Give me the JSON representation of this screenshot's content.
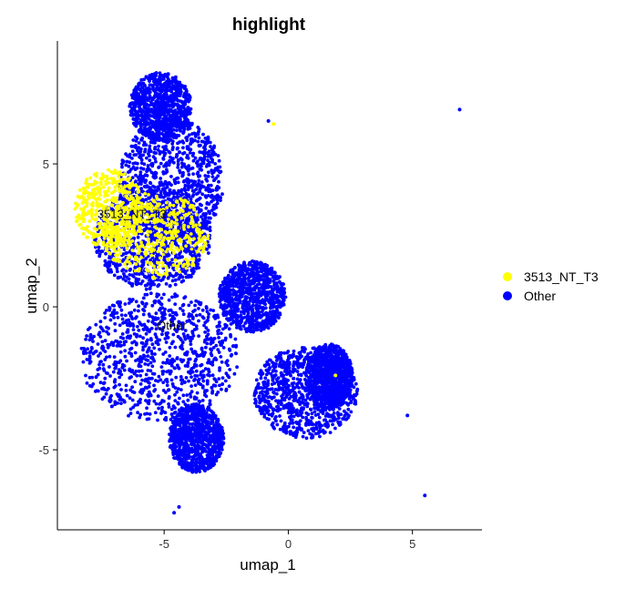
{
  "chart_data": {
    "type": "scatter",
    "title": "highlight",
    "xlabel": "umap_1",
    "ylabel": "umap_2",
    "xlim": [
      -9.3,
      7.8
    ],
    "ylim": [
      -7.8,
      9.3
    ],
    "x_ticks": [
      -5,
      0,
      5
    ],
    "y_ticks": [
      -5,
      0,
      5
    ],
    "grid": false,
    "legend_position": "right",
    "colors": {
      "highlight": "#FFFF00",
      "other": "#0000FF"
    },
    "series": [
      {
        "name": "3513_NT_T3",
        "color": "#FFFF00",
        "regions": [
          {
            "x_range": [
              -8.6,
              -5.8
            ],
            "y_range": [
              2.0,
              4.8
            ]
          },
          {
            "x_range": [
              -7.5,
              -3.2
            ],
            "y_range": [
              1.0,
              4.0
            ]
          }
        ],
        "outliers": [
          [
            -0.6,
            6.4
          ],
          [
            1.9,
            -2.4
          ]
        ]
      },
      {
        "name": "Other",
        "color": "#0000FF",
        "regions": [
          {
            "x_range": [
              -6.4,
              -3.9
            ],
            "y_range": [
              5.8,
              8.2
            ]
          },
          {
            "x_range": [
              -6.8,
              -2.6
            ],
            "y_range": [
              2.2,
              6.6
            ]
          },
          {
            "x_range": [
              -7.8,
              -3.1
            ],
            "y_range": [
              0.6,
              4.2
            ]
          },
          {
            "x_range": [
              -8.4,
              -2.0
            ],
            "y_range": [
              -4.0,
              0.5
            ]
          },
          {
            "x_range": [
              -4.8,
              -2.6
            ],
            "y_range": [
              -5.8,
              -3.4
            ]
          },
          {
            "x_range": [
              -2.8,
              -0.1
            ],
            "y_range": [
              -0.9,
              1.6
            ]
          },
          {
            "x_range": [
              -1.4,
              2.8
            ],
            "y_range": [
              -4.6,
              -1.4
            ]
          },
          {
            "x_range": [
              0.7,
              2.6
            ],
            "y_range": [
              -3.6,
              -1.3
            ]
          }
        ],
        "outliers": [
          [
            -0.8,
            6.5
          ],
          [
            6.9,
            6.9
          ],
          [
            4.8,
            -3.8
          ],
          [
            5.5,
            -6.6
          ],
          [
            -4.6,
            -7.2
          ],
          [
            -4.4,
            -7.0
          ]
        ]
      }
    ],
    "annotations": [
      {
        "text": "3513_NT_T3",
        "x": -6.3,
        "y": 3.1
      },
      {
        "text": "Other",
        "x": -4.7,
        "y": -0.8
      }
    ],
    "legend": [
      {
        "label": "3513_NT_T3",
        "color": "#FFFF00"
      },
      {
        "label": "Other",
        "color": "#0000FF"
      }
    ]
  }
}
